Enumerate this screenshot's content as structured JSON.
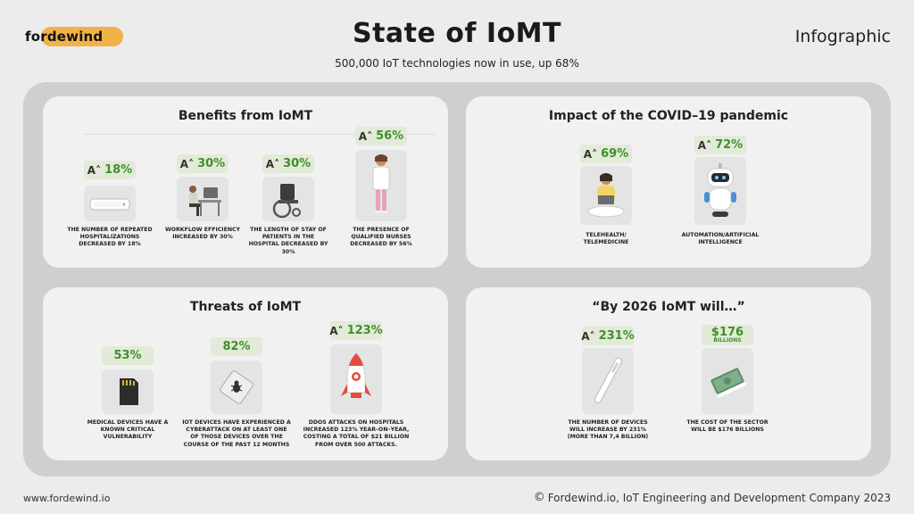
{
  "header": {
    "logo_text": "fordewind",
    "title": "State of IoMT",
    "subtitle": "500,000 IoT technologies now in use, up 68%",
    "tag": "Infographic"
  },
  "benefits": {
    "title": "Benefits  from IoMT",
    "items": [
      {
        "value": "18%",
        "icon": "battery-pack-icon",
        "text": "THE NUMBER OF REPEATED HOSPITALIZATIONS DECREASED BY 18%"
      },
      {
        "value": "30%",
        "icon": "person-at-desk-icon",
        "text": "WORKFLOW EFFICIENCY INCREASED BY 30%"
      },
      {
        "value": "30%",
        "icon": "wheelchair-icon",
        "text": "THE LENGTH OF STAY OF PATIENTS IN THE HOSPITAL DECREASED BY 30%"
      },
      {
        "value": "56%",
        "icon": "nurse-icon",
        "text": "THE PRESENCE OF QUALIFIED NURSES DECREASED BY 56%"
      }
    ]
  },
  "covid": {
    "title": "Impact of the COVID–19 pandemic",
    "items": [
      {
        "value": "69%",
        "icon": "telehealth-person-laptop-icon",
        "text": "TELEHEALTH/ TELEMEDICINE"
      },
      {
        "value": "72%",
        "icon": "robot-icon",
        "text": "AUTOMATION/ARTIFICIAL INTELLIGENCE"
      }
    ]
  },
  "threats": {
    "title": "Threats of IoMT",
    "items": [
      {
        "value": "53%",
        "icon": "sd-card-icon",
        "text": "MEDICAL DEVICES HAVE A KNOWN CRITICAL VULNERABILITY"
      },
      {
        "value": "82%",
        "icon": "bug-chip-icon",
        "text": "IOT DEVICES HAVE EXPERIENCED A CYBERATTACK ON AT LEAST ONE OF THOSE DEVICES OVER THE COURSE OF THE PAST 12 MONTHS"
      },
      {
        "value": "123%",
        "icon": "rocket-icon",
        "text": "DDOS ATTACKS ON HOSPITALS INCREASED 123% YEAR–ON–YEAR, COSTING A TOTAL OF $21 BILLION FROM OVER 500 ATTACKS."
      }
    ]
  },
  "future": {
    "title": "“By 2026 IoMT will…”",
    "items": [
      {
        "value": "231%",
        "icon": "thermometer-icon",
        "text": "THE NUMBER OF DEVICES WILL INCREASE BY 231% (MORE THAN 7,4 BILLION)"
      },
      {
        "value": "$176",
        "value_sub": "BILLIONS",
        "icon": "money-stack-icon",
        "text": "THE COST OF THE SECTOR WILL BE $176 BILLIONS"
      }
    ]
  },
  "footer": {
    "website": "www.fordewind.io",
    "copyright": "Fordewind.io, IoT Engineering and Development Company 2023"
  },
  "colors": {
    "accent_green": "#3f8f2a",
    "badge_bg": "#e2ead8",
    "logo_orange": "#f2b24a",
    "frame": "#cfcfcf",
    "panel": "#f1f1f1"
  }
}
